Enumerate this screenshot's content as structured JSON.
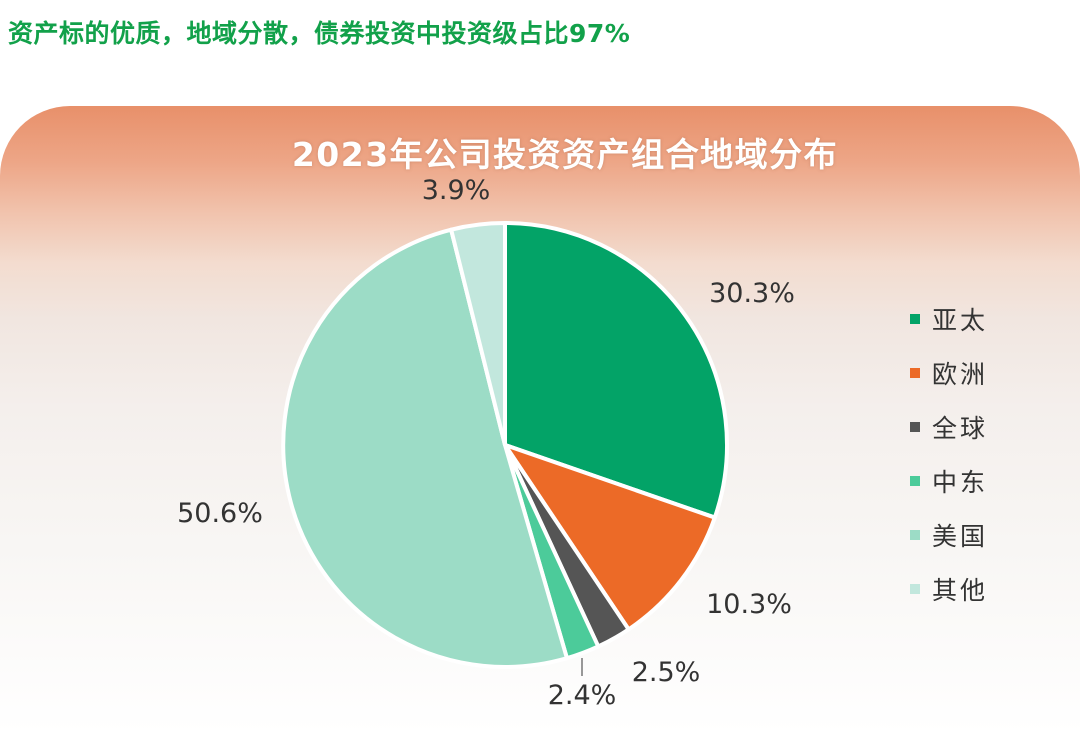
{
  "headline": "资产标的优质，地域分散，债券投资中投资级占比97%",
  "chart_data": {
    "type": "pie",
    "title": "2023年公司投资资产组合地域分布",
    "unit": "%",
    "legend_position": "right",
    "slices": [
      {
        "name": "亚太",
        "value": 30.3,
        "label": "30.3%",
        "color": "#03a367"
      },
      {
        "name": "欧洲",
        "value": 10.3,
        "label": "10.3%",
        "color": "#ec6a27"
      },
      {
        "name": "全球",
        "value": 2.5,
        "label": "2.5%",
        "color": "#555555"
      },
      {
        "name": "中东",
        "value": 2.4,
        "label": "2.4%",
        "color": "#4ccb9a"
      },
      {
        "name": "美国",
        "value": 50.6,
        "label": "50.6%",
        "color": "#9cdcc6"
      },
      {
        "name": "其他",
        "value": 3.9,
        "label": "3.9%",
        "color": "#c2e7dd"
      }
    ]
  }
}
